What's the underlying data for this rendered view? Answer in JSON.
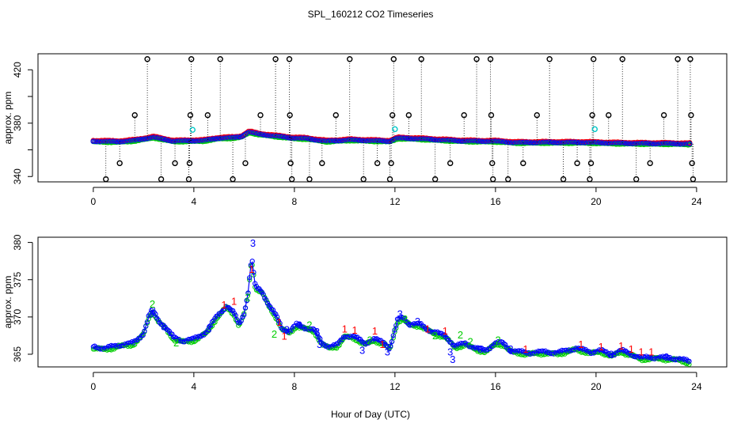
{
  "chart_data": {
    "title": "SPL_160212  CO2 Timeseries",
    "xlabel": "Hour of Day (UTC)",
    "colors": {
      "black": "#000000",
      "red": "#ff0000",
      "green": "#00cd00",
      "blue": "#0000ff",
      "cyan": "#00c8c8"
    },
    "panels": [
      {
        "type": "scatter",
        "ylabel": "approx. ppm",
        "xlim": [
          -2.2,
          25.2
        ],
        "ylim": [
          336,
          432
        ],
        "xticks": [
          0,
          4,
          8,
          12,
          16,
          20,
          24
        ],
        "yticks": [
          340,
          360,
          380,
          400,
          420
        ],
        "yticklabels": [
          "340",
          "",
          "380",
          "",
          "420"
        ],
        "baseline_knots": [
          [
            0.0,
            366.5
          ],
          [
            1.0,
            366.2
          ],
          [
            1.6,
            367.0
          ],
          [
            2.0,
            368.2
          ],
          [
            2.4,
            369.5
          ],
          [
            2.8,
            368.0
          ],
          [
            3.2,
            366.6
          ],
          [
            3.8,
            366.8
          ],
          [
            4.4,
            367.0
          ],
          [
            5.0,
            368.8
          ],
          [
            5.6,
            369.2
          ],
          [
            5.9,
            370.0
          ],
          [
            6.2,
            373.5
          ],
          [
            6.6,
            371.8
          ],
          [
            7.2,
            370.5
          ],
          [
            7.9,
            369.0
          ],
          [
            8.5,
            368.5
          ],
          [
            9.3,
            366.5
          ],
          [
            10.2,
            367.5
          ],
          [
            11.0,
            367.0
          ],
          [
            11.8,
            366.5
          ],
          [
            12.1,
            368.8
          ],
          [
            12.8,
            368.5
          ],
          [
            13.8,
            367.5
          ],
          [
            14.6,
            366.8
          ],
          [
            15.4,
            366.5
          ],
          [
            16.0,
            366.5
          ],
          [
            16.8,
            365.5
          ],
          [
            18.0,
            365.6
          ],
          [
            19.5,
            365.6
          ],
          [
            20.0,
            365.4
          ],
          [
            21.0,
            365.0
          ],
          [
            22.0,
            364.8
          ],
          [
            23.0,
            364.7
          ],
          [
            23.7,
            364.5
          ]
        ],
        "baseline_range": [
          0.0,
          23.75
        ],
        "baseline_step": 0.065,
        "spikes": [
          [
            0.5,
            338
          ],
          [
            1.05,
            350
          ],
          [
            1.65,
            386
          ],
          [
            2.15,
            428
          ],
          [
            2.7,
            338
          ],
          [
            3.25,
            350
          ],
          [
            3.8,
            338
          ],
          [
            3.83,
            350
          ],
          [
            3.86,
            386
          ],
          [
            3.9,
            428
          ],
          [
            4.55,
            386
          ],
          [
            5.05,
            428
          ],
          [
            5.55,
            338
          ],
          [
            6.05,
            350
          ],
          [
            6.65,
            386
          ],
          [
            7.25,
            428
          ],
          [
            7.8,
            428
          ],
          [
            7.82,
            386
          ],
          [
            7.85,
            350
          ],
          [
            7.9,
            338
          ],
          [
            8.6,
            338
          ],
          [
            9.1,
            350
          ],
          [
            9.65,
            386
          ],
          [
            10.2,
            428
          ],
          [
            10.75,
            338
          ],
          [
            11.3,
            350
          ],
          [
            11.8,
            338
          ],
          [
            11.85,
            350
          ],
          [
            11.9,
            386
          ],
          [
            11.95,
            428
          ],
          [
            12.55,
            386
          ],
          [
            13.05,
            428
          ],
          [
            13.6,
            338
          ],
          [
            14.2,
            350
          ],
          [
            14.75,
            386
          ],
          [
            15.25,
            428
          ],
          [
            15.8,
            428
          ],
          [
            15.83,
            386
          ],
          [
            15.87,
            350
          ],
          [
            15.9,
            338
          ],
          [
            16.5,
            338
          ],
          [
            17.1,
            350
          ],
          [
            17.65,
            386
          ],
          [
            18.15,
            428
          ],
          [
            18.7,
            338
          ],
          [
            19.25,
            350
          ],
          [
            19.75,
            338
          ],
          [
            19.8,
            350
          ],
          [
            19.85,
            386
          ],
          [
            19.9,
            428
          ],
          [
            20.5,
            386
          ],
          [
            21.05,
            428
          ],
          [
            21.6,
            338
          ],
          [
            22.15,
            350
          ],
          [
            22.7,
            386
          ],
          [
            23.25,
            428
          ],
          [
            23.75,
            428
          ],
          [
            23.78,
            386
          ],
          [
            23.82,
            350
          ],
          [
            23.86,
            338
          ]
        ],
        "highlights": [
          [
            3.95,
            375
          ],
          [
            12.0,
            375.5
          ],
          [
            19.95,
            375.5
          ]
        ]
      },
      {
        "type": "line",
        "ylabel": "approx. ppm",
        "xlim": [
          -2.2,
          25.2
        ],
        "ylim": [
          363.3,
          380.7
        ],
        "xticks": [
          0,
          4,
          8,
          12,
          16,
          20,
          24
        ],
        "yticks": [
          365,
          370,
          375,
          380
        ],
        "series_knots": [
          [
            0.0,
            366.0
          ],
          [
            0.5,
            365.8
          ],
          [
            1.0,
            366.2
          ],
          [
            1.6,
            366.5
          ],
          [
            2.0,
            367.8
          ],
          [
            2.2,
            370.0
          ],
          [
            2.35,
            371.0
          ],
          [
            2.6,
            369.5
          ],
          [
            2.9,
            368.5
          ],
          [
            3.2,
            367.2
          ],
          [
            3.6,
            366.8
          ],
          [
            4.0,
            367.0
          ],
          [
            4.5,
            368.0
          ],
          [
            4.9,
            370.0
          ],
          [
            5.3,
            371.5
          ],
          [
            5.6,
            370.5
          ],
          [
            5.8,
            369.0
          ],
          [
            6.0,
            370.5
          ],
          [
            6.15,
            373.0
          ],
          [
            6.3,
            378.0
          ],
          [
            6.45,
            374.0
          ],
          [
            6.7,
            373.5
          ],
          [
            7.0,
            371.5
          ],
          [
            7.3,
            370.0
          ],
          [
            7.5,
            368.5
          ],
          [
            7.8,
            368.0
          ],
          [
            8.1,
            369.0
          ],
          [
            8.5,
            368.5
          ],
          [
            8.8,
            368.2
          ],
          [
            9.1,
            366.5
          ],
          [
            9.4,
            366.0
          ],
          [
            9.7,
            366.2
          ],
          [
            10.0,
            367.5
          ],
          [
            10.4,
            367.3
          ],
          [
            10.8,
            366.5
          ],
          [
            11.2,
            367.0
          ],
          [
            11.6,
            366.5
          ],
          [
            11.8,
            365.8
          ],
          [
            12.1,
            369.5
          ],
          [
            12.3,
            370.0
          ],
          [
            12.6,
            369.0
          ],
          [
            13.0,
            369.0
          ],
          [
            13.5,
            368.0
          ],
          [
            14.0,
            367.5
          ],
          [
            14.4,
            366.0
          ],
          [
            14.8,
            366.5
          ],
          [
            15.2,
            365.8
          ],
          [
            15.6,
            365.5
          ],
          [
            16.0,
            366.5
          ],
          [
            16.3,
            366.5
          ],
          [
            16.6,
            365.5
          ],
          [
            17.2,
            365.2
          ],
          [
            18.0,
            365.3
          ],
          [
            18.5,
            365.2
          ],
          [
            19.2,
            365.8
          ],
          [
            19.8,
            365.3
          ],
          [
            20.2,
            365.5
          ],
          [
            20.6,
            364.9
          ],
          [
            21.0,
            365.5
          ],
          [
            21.4,
            365.0
          ],
          [
            21.8,
            364.5
          ],
          [
            22.3,
            364.6
          ],
          [
            22.8,
            364.5
          ],
          [
            23.3,
            364.4
          ],
          [
            23.7,
            364.0
          ]
        ],
        "series_range": [
          0.0,
          23.72
        ],
        "series_step": 0.055,
        "labels": [
          {
            "text": "3",
            "x": 6.35,
            "y": 379.8,
            "color": "#0000ff"
          },
          {
            "text": "1",
            "x": 6.3,
            "y": 376.3,
            "color": "#ff0000"
          },
          {
            "text": "1",
            "x": 5.6,
            "y": 372.0,
            "color": "#ff0000"
          },
          {
            "text": "1",
            "x": 5.2,
            "y": 371.5,
            "color": "#ff0000"
          },
          {
            "text": "2",
            "x": 2.35,
            "y": 371.6,
            "color": "#00cd00"
          },
          {
            "text": "3",
            "x": 2.3,
            "y": 370.3,
            "color": "#0000ff"
          },
          {
            "text": "2",
            "x": 6.15,
            "y": 372.5,
            "color": "#00cd00"
          },
          {
            "text": "1",
            "x": 7.4,
            "y": 369.2,
            "color": "#ff0000"
          },
          {
            "text": "3",
            "x": 7.7,
            "y": 368.2,
            "color": "#0000ff"
          },
          {
            "text": "1",
            "x": 7.6,
            "y": 367.3,
            "color": "#ff0000"
          },
          {
            "text": "2",
            "x": 7.2,
            "y": 367.6,
            "color": "#00cd00"
          },
          {
            "text": "3",
            "x": 8.2,
            "y": 368.8,
            "color": "#0000ff"
          },
          {
            "text": "2",
            "x": 8.6,
            "y": 368.8,
            "color": "#00cd00"
          },
          {
            "text": "3",
            "x": 8.9,
            "y": 367.9,
            "color": "#0000ff"
          },
          {
            "text": "3",
            "x": 9.0,
            "y": 366.2,
            "color": "#0000ff"
          },
          {
            "text": "1",
            "x": 10.0,
            "y": 368.3,
            "color": "#ff0000"
          },
          {
            "text": "1",
            "x": 10.4,
            "y": 368.1,
            "color": "#ff0000"
          },
          {
            "text": "3",
            "x": 10.7,
            "y": 365.4,
            "color": "#0000ff"
          },
          {
            "text": "1",
            "x": 11.2,
            "y": 368.0,
            "color": "#ff0000"
          },
          {
            "text": "2",
            "x": 11.0,
            "y": 366.8,
            "color": "#00cd00"
          },
          {
            "text": "1",
            "x": 11.5,
            "y": 366.2,
            "color": "#ff0000"
          },
          {
            "text": "3",
            "x": 11.7,
            "y": 365.2,
            "color": "#0000ff"
          },
          {
            "text": "3",
            "x": 12.2,
            "y": 370.3,
            "color": "#0000ff"
          },
          {
            "text": "2",
            "x": 12.4,
            "y": 369.6,
            "color": "#00cd00"
          },
          {
            "text": "3",
            "x": 12.9,
            "y": 369.3,
            "color": "#0000ff"
          },
          {
            "text": "1",
            "x": 13.3,
            "y": 368.3,
            "color": "#ff0000"
          },
          {
            "text": "2",
            "x": 13.6,
            "y": 367.4,
            "color": "#00cd00"
          },
          {
            "text": "1",
            "x": 14.0,
            "y": 368.0,
            "color": "#ff0000"
          },
          {
            "text": "2",
            "x": 14.6,
            "y": 367.5,
            "color": "#00cd00"
          },
          {
            "text": "3",
            "x": 14.2,
            "y": 365.2,
            "color": "#0000ff"
          },
          {
            "text": "3",
            "x": 14.3,
            "y": 364.2,
            "color": "#0000ff"
          },
          {
            "text": "2",
            "x": 15.0,
            "y": 366.6,
            "color": "#00cd00"
          },
          {
            "text": "3",
            "x": 15.4,
            "y": 365.6,
            "color": "#0000ff"
          },
          {
            "text": "2",
            "x": 16.1,
            "y": 366.8,
            "color": "#00cd00"
          },
          {
            "text": "3",
            "x": 16.6,
            "y": 365.6,
            "color": "#0000ff"
          },
          {
            "text": "1",
            "x": 17.2,
            "y": 365.6,
            "color": "#ff0000"
          },
          {
            "text": "1",
            "x": 19.4,
            "y": 366.2,
            "color": "#ff0000"
          },
          {
            "text": "1",
            "x": 20.2,
            "y": 365.9,
            "color": "#ff0000"
          },
          {
            "text": "3",
            "x": 20.6,
            "y": 364.9,
            "color": "#0000ff"
          },
          {
            "text": "1",
            "x": 21.0,
            "y": 366.0,
            "color": "#ff0000"
          },
          {
            "text": "1",
            "x": 21.4,
            "y": 365.6,
            "color": "#ff0000"
          },
          {
            "text": "1",
            "x": 21.8,
            "y": 365.2,
            "color": "#ff0000"
          },
          {
            "text": "1",
            "x": 22.2,
            "y": 365.2,
            "color": "#ff0000"
          },
          {
            "text": "3",
            "x": 22.8,
            "y": 364.5,
            "color": "#0000ff"
          },
          {
            "text": "2",
            "x": 3.3,
            "y": 366.4,
            "color": "#00cd00"
          },
          {
            "text": "3",
            "x": 2.8,
            "y": 368.6,
            "color": "#0000ff"
          },
          {
            "text": "3",
            "x": 4.6,
            "y": 368.3,
            "color": "#0000ff"
          }
        ]
      }
    ]
  }
}
